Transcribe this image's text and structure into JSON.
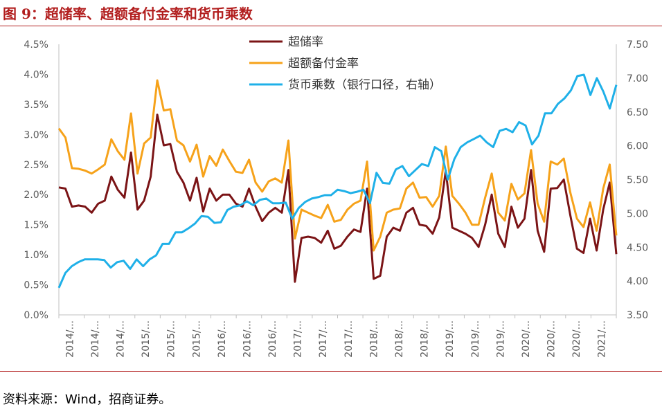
{
  "title": "图 9：超储率、超额备付金率和货币乘数",
  "source": "资料来源：Wind，招商证券。",
  "chart_data": {
    "type": "line",
    "left_axis": {
      "ticks": [
        "0.0%",
        "0.5%",
        "1.0%",
        "1.5%",
        "2.0%",
        "2.5%",
        "3.0%",
        "3.5%",
        "4.0%",
        "4.5%"
      ],
      "ylim": [
        0,
        4.5
      ]
    },
    "right_axis": {
      "ticks": [
        "3.50",
        "4.00",
        "4.50",
        "5.00",
        "5.50",
        "6.00",
        "6.50",
        "7.00",
        "7.50"
      ],
      "ylim": [
        3.5,
        7.5
      ]
    },
    "x_tick_labels": [
      "2014/...",
      "2014/...",
      "2014/...",
      "2015/...",
      "2015/...",
      "2015/...",
      "2016/...",
      "2016/...",
      "2016/...",
      "2017/...",
      "2017/...",
      "2017/...",
      "2018/...",
      "2018/...",
      "2018/...",
      "2019/...",
      "2019/...",
      "2019/...",
      "2020/...",
      "2020/...",
      "2020/...",
      "2021/..."
    ],
    "legend_position": "top-center",
    "grid": false,
    "series": [
      {
        "name": "超储率",
        "axis": "left",
        "color": "#7b1416",
        "values": [
          2.12,
          2.1,
          1.8,
          1.82,
          1.8,
          1.7,
          1.85,
          1.9,
          2.3,
          2.08,
          1.95,
          2.7,
          1.75,
          1.9,
          2.3,
          3.33,
          2.82,
          2.84,
          2.38,
          2.2,
          1.9,
          2.28,
          1.72,
          2.1,
          1.9,
          2.0,
          2.0,
          1.85,
          1.8,
          2.1,
          1.8,
          1.56,
          1.7,
          1.78,
          1.7,
          2.41,
          0.55,
          1.28,
          1.3,
          1.28,
          1.2,
          1.4,
          1.1,
          1.15,
          1.3,
          1.42,
          1.38,
          2.1,
          0.6,
          0.65,
          1.3,
          1.45,
          1.4,
          1.7,
          1.78,
          1.5,
          1.48,
          1.35,
          1.62,
          2.4,
          1.45,
          1.4,
          1.35,
          1.28,
          1.13,
          1.5,
          2.0,
          1.35,
          1.13,
          1.8,
          1.45,
          1.6,
          2.41,
          1.4,
          1.05,
          2.1,
          2.11,
          2.25,
          1.65,
          1.1,
          1.03,
          1.6,
          1.07,
          1.75,
          2.2,
          1.01
        ]
      },
      {
        "name": "超额备付金率",
        "axis": "left",
        "color": "#f6a21a",
        "values": [
          3.1,
          2.95,
          2.44,
          2.43,
          2.4,
          2.35,
          2.42,
          2.5,
          2.92,
          2.72,
          2.58,
          3.35,
          2.35,
          2.85,
          2.95,
          3.9,
          3.4,
          3.42,
          2.9,
          2.82,
          2.55,
          2.83,
          2.3,
          2.64,
          2.48,
          2.75,
          2.56,
          2.38,
          2.36,
          2.58,
          2.2,
          2.05,
          2.22,
          2.27,
          2.2,
          2.9,
          1.27,
          1.75,
          1.7,
          1.65,
          1.61,
          1.83,
          1.55,
          1.58,
          1.75,
          1.85,
          1.9,
          2.55,
          1.07,
          1.3,
          1.7,
          1.75,
          1.77,
          2.1,
          2.2,
          1.95,
          1.96,
          1.8,
          1.98,
          2.8,
          1.98,
          1.85,
          1.7,
          1.5,
          1.5,
          1.95,
          2.35,
          1.7,
          1.57,
          2.18,
          1.92,
          2.02,
          2.74,
          1.85,
          1.55,
          2.55,
          2.5,
          2.6,
          2.03,
          1.6,
          1.46,
          1.87,
          1.4,
          2.1,
          2.5,
          1.32
        ]
      },
      {
        "name": "货币乘数（银行口径，右轴）",
        "axis": "right",
        "color": "#1fb0e8",
        "values": [
          3.9,
          4.12,
          4.22,
          4.28,
          4.32,
          4.32,
          4.32,
          4.31,
          4.2,
          4.28,
          4.3,
          4.18,
          4.32,
          4.22,
          4.32,
          4.38,
          4.55,
          4.55,
          4.72,
          4.72,
          4.78,
          4.85,
          4.96,
          4.95,
          4.86,
          4.87,
          5.05,
          5.1,
          5.12,
          5.18,
          5.12,
          5.2,
          5.22,
          5.15,
          5.15,
          5.16,
          4.92,
          5.08,
          5.17,
          5.22,
          5.24,
          5.27,
          5.27,
          5.35,
          5.33,
          5.3,
          5.32,
          5.35,
          5.15,
          5.6,
          5.45,
          5.44,
          5.65,
          5.7,
          5.55,
          5.64,
          5.73,
          5.7,
          5.98,
          5.92,
          5.5,
          5.8,
          5.98,
          6.05,
          6.1,
          6.15,
          6.05,
          5.98,
          6.22,
          6.25,
          6.2,
          6.35,
          6.3,
          6.02,
          6.15,
          6.48,
          6.48,
          6.62,
          6.7,
          6.82,
          7.03,
          7.05,
          6.75,
          7.0,
          6.8,
          6.55,
          6.9
        ]
      }
    ]
  }
}
